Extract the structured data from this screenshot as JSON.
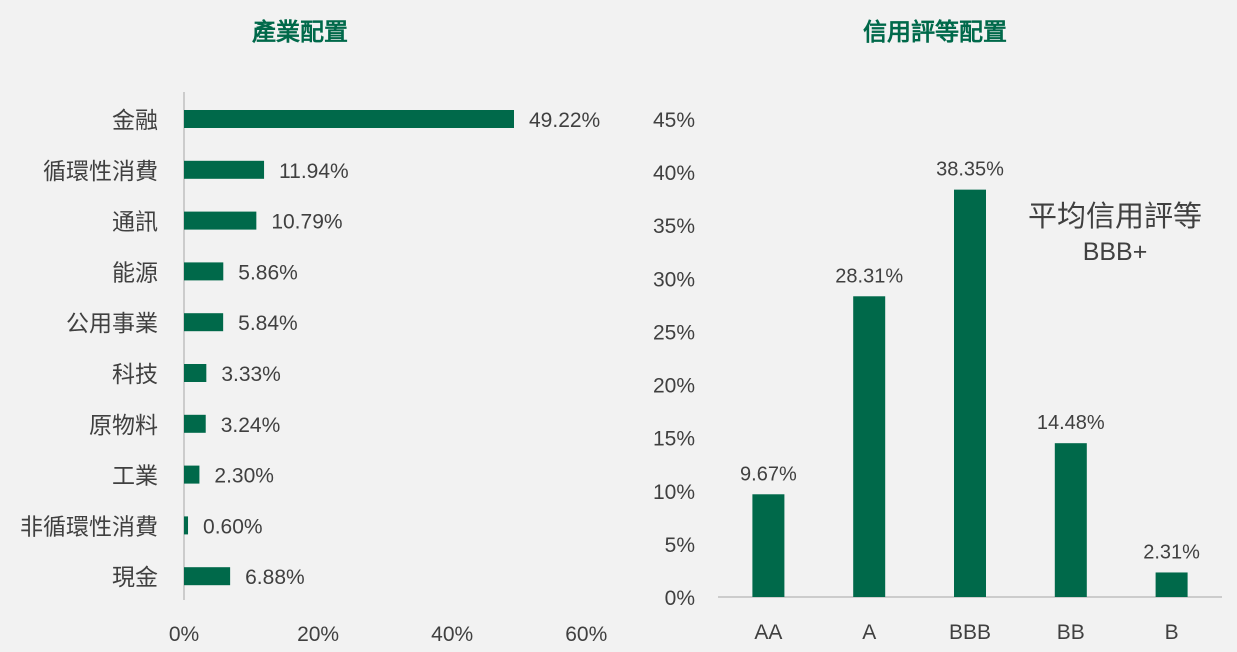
{
  "colors": {
    "bar": "#00694a",
    "title": "#00694a",
    "text": "#404040",
    "axis": "#bfbfbf",
    "background": "#f2f2f2"
  },
  "chart_data": [
    {
      "type": "bar",
      "orientation": "horizontal",
      "title": "產業配置",
      "categories": [
        "金融",
        "循環性消費",
        "通訊",
        "能源",
        "公用事業",
        "科技",
        "原物料",
        "工業",
        "非循環性消費",
        "現金"
      ],
      "values": [
        49.22,
        11.94,
        10.79,
        5.86,
        5.84,
        3.33,
        3.24,
        2.3,
        0.6,
        6.88
      ],
      "value_labels": [
        "49.22%",
        "11.94%",
        "10.79%",
        "5.86%",
        "5.84%",
        "3.33%",
        "3.24%",
        "2.30%",
        "0.60%",
        "6.88%"
      ],
      "xlim": [
        0,
        60
      ],
      "xticks": [
        0,
        20,
        40,
        60
      ],
      "xtick_labels": [
        "0%",
        "20%",
        "40%",
        "60%"
      ],
      "grid": false
    },
    {
      "type": "bar",
      "orientation": "vertical",
      "title": "信用評等配置",
      "categories": [
        "AA",
        "A",
        "BBB",
        "BB",
        "B"
      ],
      "values": [
        9.67,
        28.31,
        38.35,
        14.48,
        2.31
      ],
      "value_labels": [
        "9.67%",
        "28.31%",
        "38.35%",
        "14.48%",
        "2.31%"
      ],
      "ylim": [
        0,
        45
      ],
      "yticks": [
        0,
        5,
        10,
        15,
        20,
        25,
        30,
        35,
        40,
        45
      ],
      "ytick_labels": [
        "0%",
        "5%",
        "10%",
        "15%",
        "20%",
        "25%",
        "30%",
        "35%",
        "40%",
        "45%"
      ],
      "grid": false,
      "annotation": {
        "label": "平均信用評等",
        "value": "BBB+"
      }
    }
  ]
}
